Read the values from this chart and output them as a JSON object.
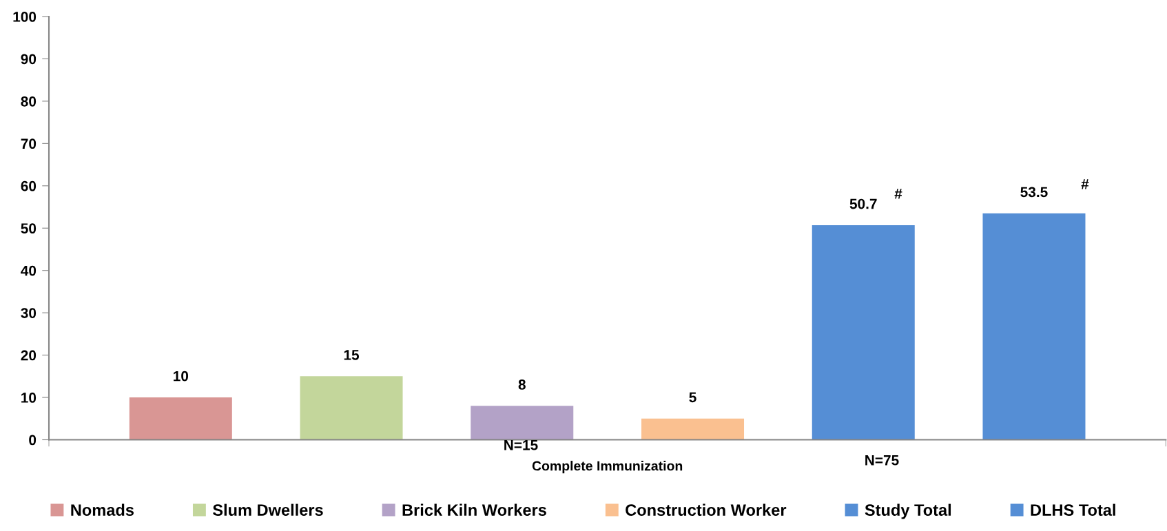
{
  "chart_data": {
    "type": "bar",
    "categories": [
      "Complete Immunization"
    ],
    "series": [
      {
        "name": "Nomads",
        "color": "#d99694",
        "values": [
          10
        ]
      },
      {
        "name": "Slum Dwellers",
        "color": "#c3d69b",
        "values": [
          15
        ]
      },
      {
        "name": "Brick Kiln Workers",
        "color": "#b3a2c7",
        "values": [
          8
        ]
      },
      {
        "name": "Construction Worker",
        "color": "#fac090",
        "values": [
          5
        ]
      },
      {
        "name": "Study Total",
        "color": "#558ed5",
        "values": [
          50.7
        ]
      },
      {
        "name": "DLHS Total",
        "color": "#558ed5",
        "values": [
          53.5
        ]
      }
    ],
    "ylim": [
      0,
      100
    ],
    "yticks": [
      0,
      10,
      20,
      30,
      40,
      50,
      60,
      70,
      80,
      90,
      100
    ],
    "data_labels": true,
    "grid": false,
    "legend": "bottom",
    "annotations": [
      "N=15",
      "N=75",
      "#",
      "#"
    ]
  }
}
